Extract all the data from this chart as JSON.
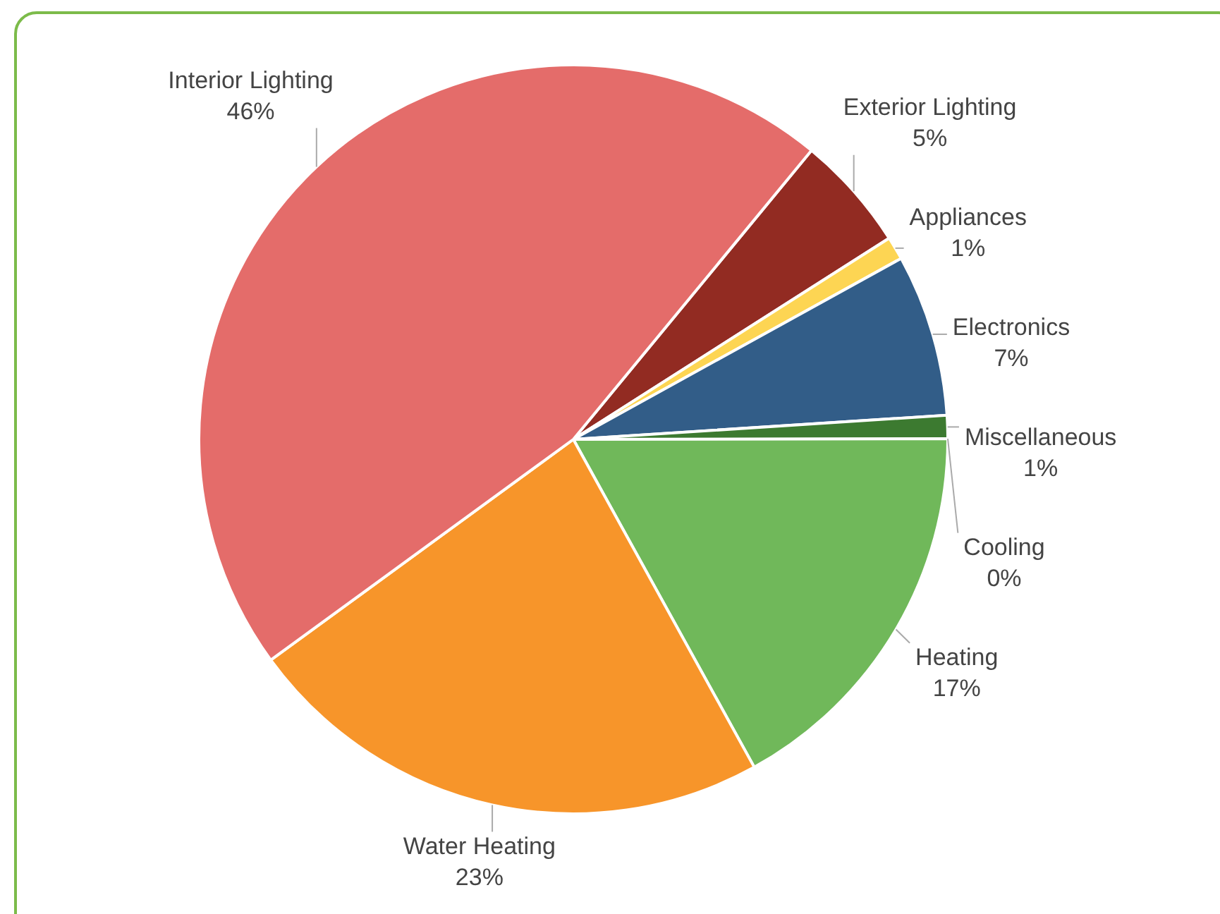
{
  "chart_data": {
    "type": "pie",
    "categories": [
      "Exterior Lighting",
      "Appliances",
      "Electronics",
      "Miscellaneous",
      "Cooling",
      "Heating",
      "Water Heating",
      "Interior Lighting"
    ],
    "values": [
      5,
      1,
      7,
      1,
      0,
      17,
      23,
      46
    ],
    "colors": [
      "#922b22",
      "#fdd553",
      "#325d88",
      "#3c7a30",
      "#a9c98f",
      "#70b85a",
      "#f7952a",
      "#e46c6a"
    ],
    "value_labels": [
      "5%",
      "1%",
      "7%",
      "1%",
      "0%",
      "17%",
      "23%",
      "46%"
    ],
    "legend": false
  }
}
